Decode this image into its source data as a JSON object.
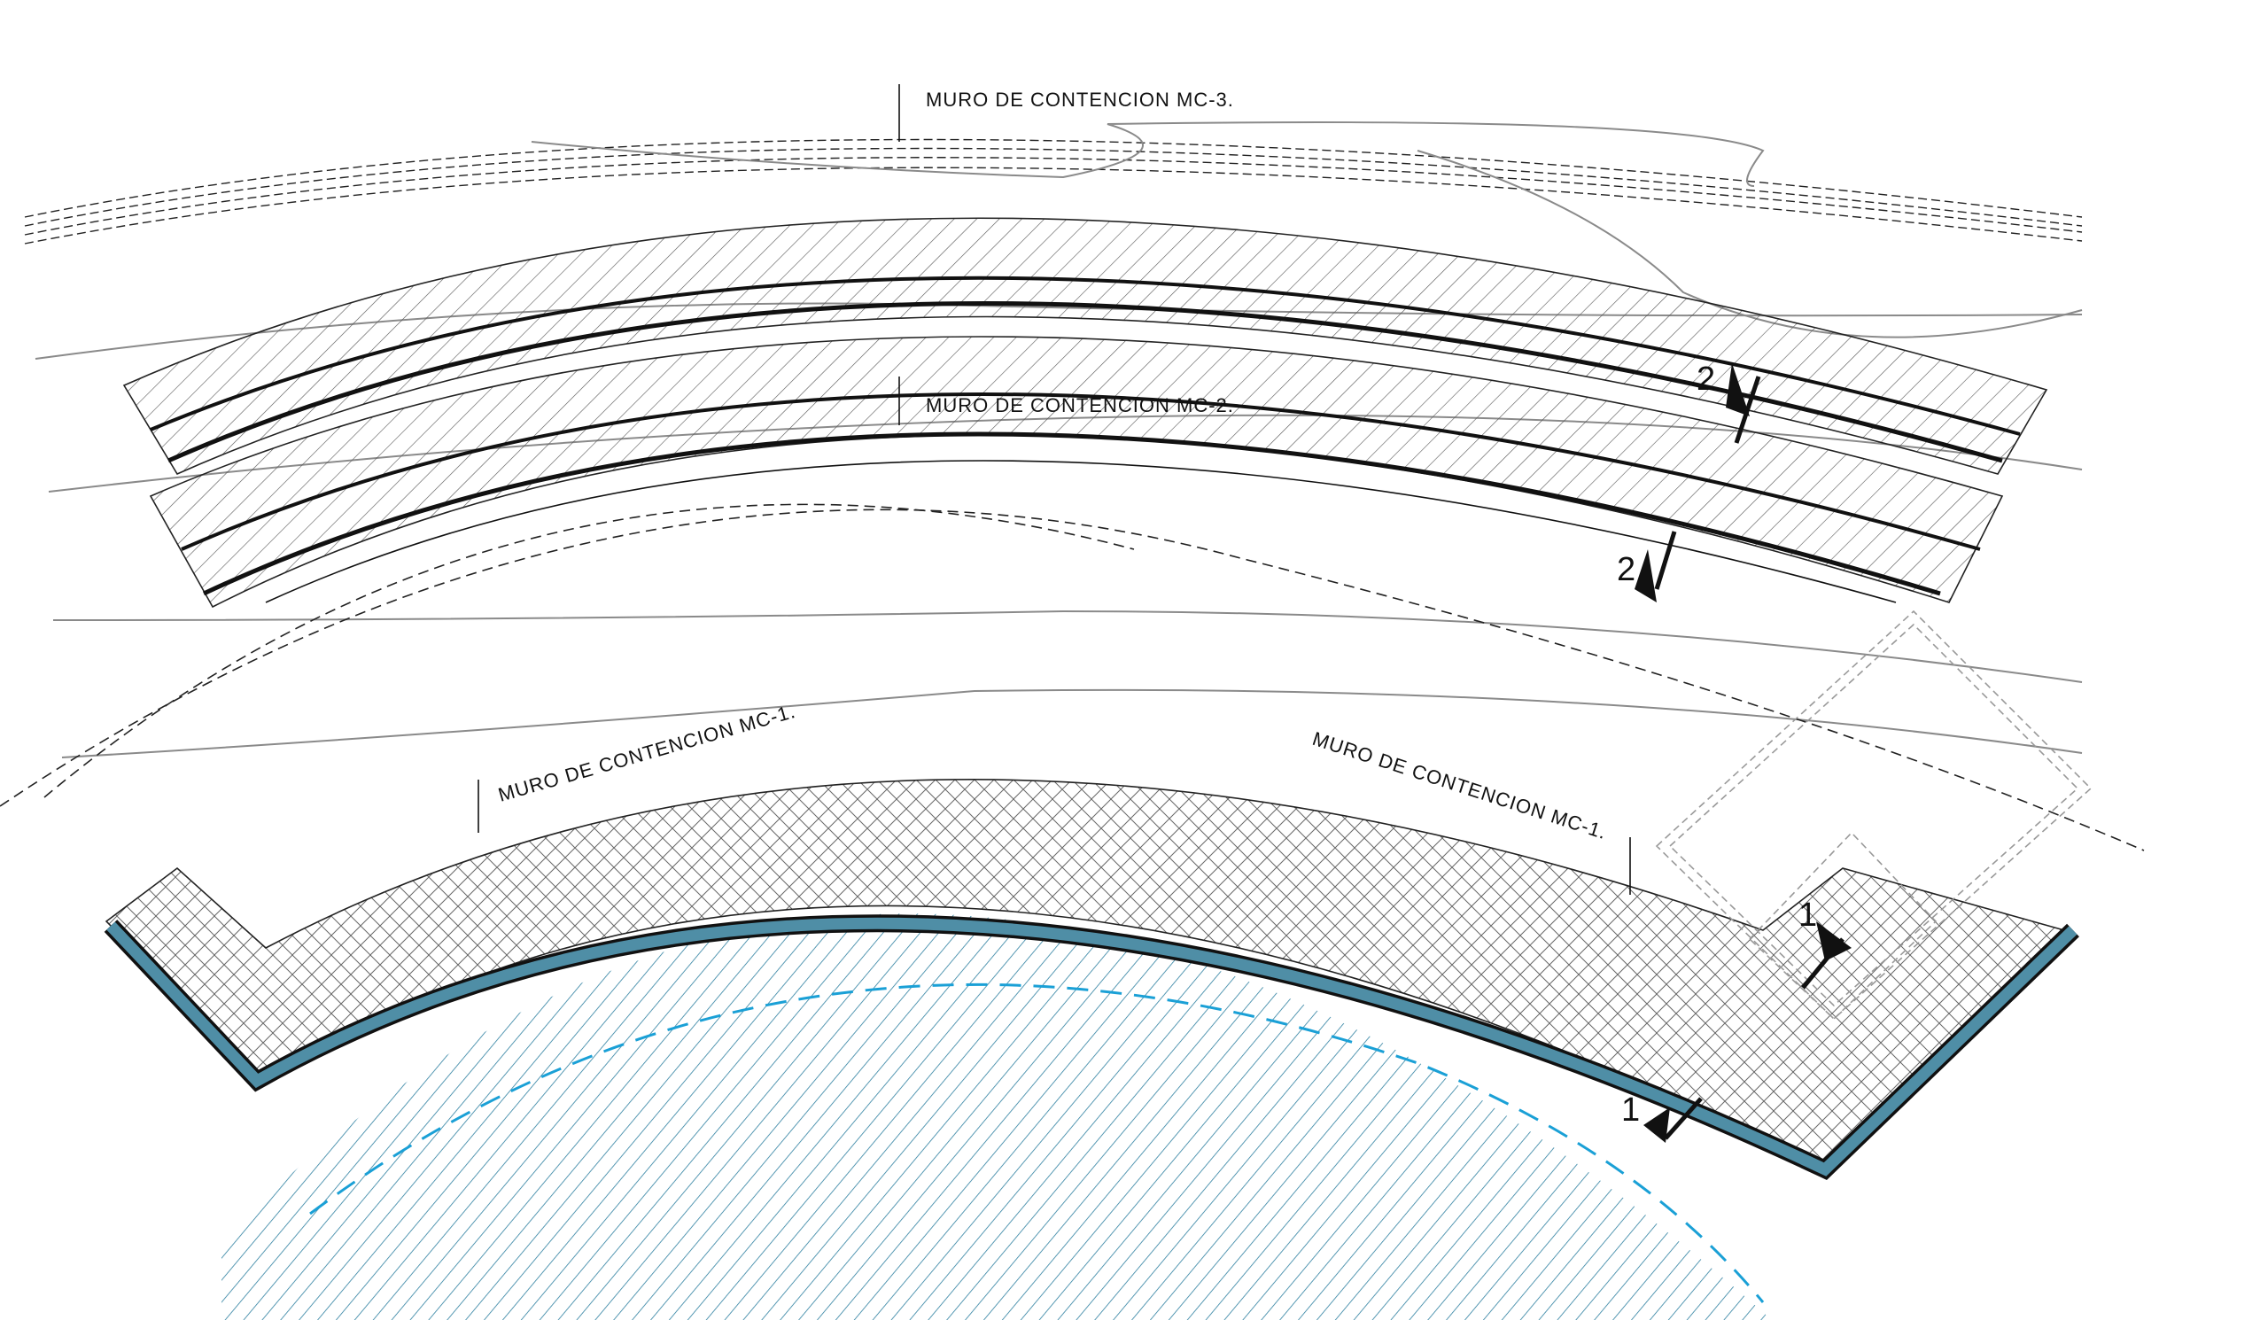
{
  "labels": {
    "mc3": "MURO DE CONTENCION MC-3.",
    "mc2": "MURO DE CONTENCION MC-2.",
    "mc1_left": "MURO DE CONTENCION MC-1.",
    "mc1_right": "MURO DE CONTENCION MC-1."
  },
  "slope_marks": {
    "upper_a": "2",
    "upper_b": "2",
    "lower_a": "1",
    "lower_b": "1"
  },
  "colors": {
    "line": "#111111",
    "contour": "#8a8a8a",
    "wall_fill": "#4f8ea6",
    "water": "#1aa0d6",
    "hatch_blue": "#2c7fa0"
  }
}
